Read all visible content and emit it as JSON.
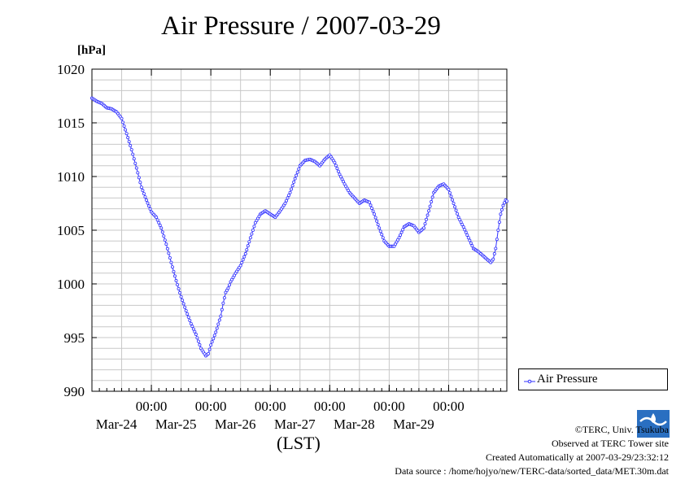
{
  "title": "Air Pressure / 2007-03-29",
  "unit_label": "[hPa]",
  "x_axis_title": "(LST)",
  "legend_label": "Air Pressure",
  "footer": {
    "copyright": "©TERC, Univ. Tsukuba",
    "observed": "Observed at TERC Tower site",
    "created": "Created Automatically at 2007-03-29/23:32:12",
    "source": "Data source : /home/hojyo/new/TERC-data/sorted_data/MET.30m.dat"
  },
  "logo_text": "TERC",
  "colors": {
    "series": "#3333ff",
    "grid": "#c8c8c8",
    "axis": "#000000"
  },
  "chart_data": {
    "type": "line",
    "title": "Air Pressure / 2007-03-29",
    "ylabel": "[hPa]",
    "xlabel": "(LST)",
    "ylim": [
      990,
      1020
    ],
    "y_ticks": [
      990,
      995,
      1000,
      1005,
      1010,
      1015,
      1020
    ],
    "x_start": "2007-03-23 00:00",
    "x_end": "2007-03-29 23:30",
    "x_ticks": [
      {
        "time": "00:00",
        "date": "Mar-24"
      },
      {
        "time": "00:00",
        "date": "Mar-25"
      },
      {
        "time": "00:00",
        "date": "Mar-26"
      },
      {
        "time": "00:00",
        "date": "Mar-27"
      },
      {
        "time": "00:00",
        "date": "Mar-28"
      },
      {
        "time": "00:00",
        "date": "Mar-29"
      }
    ],
    "grid": true,
    "legend_position": "outside-right-bottom",
    "sampling": "30 min",
    "series": [
      {
        "name": "Air Pressure",
        "points": [
          [
            "2007-03-23 00:00",
            1017.3
          ],
          [
            "2007-03-23 02:00",
            1017.0
          ],
          [
            "2007-03-23 04:00",
            1016.8
          ],
          [
            "2007-03-23 06:00",
            1016.4
          ],
          [
            "2007-03-23 08:00",
            1016.3
          ],
          [
            "2007-03-23 10:00",
            1016.0
          ],
          [
            "2007-03-23 12:00",
            1015.4
          ],
          [
            "2007-03-23 14:00",
            1014.0
          ],
          [
            "2007-03-23 16:00",
            1012.5
          ],
          [
            "2007-03-23 18:00",
            1010.8
          ],
          [
            "2007-03-23 20:00",
            1009.0
          ],
          [
            "2007-03-23 22:00",
            1007.8
          ],
          [
            "2007-03-24 00:00",
            1006.7
          ],
          [
            "2007-03-24 02:00",
            1006.2
          ],
          [
            "2007-03-24 04:00",
            1005.2
          ],
          [
            "2007-03-24 06:00",
            1003.7
          ],
          [
            "2007-03-24 08:00",
            1002.0
          ],
          [
            "2007-03-24 10:00",
            1000.3
          ],
          [
            "2007-03-24 12:00",
            998.8
          ],
          [
            "2007-03-24 14:00",
            997.5
          ],
          [
            "2007-03-24 16:00",
            996.3
          ],
          [
            "2007-03-24 18:00",
            995.3
          ],
          [
            "2007-03-24 20:00",
            994.0
          ],
          [
            "2007-03-24 22:00",
            993.3
          ],
          [
            "2007-03-24 23:00",
            993.5
          ],
          [
            "2007-03-25 00:00",
            994.3
          ],
          [
            "2007-03-25 02:00",
            995.5
          ],
          [
            "2007-03-25 04:00",
            997.0
          ],
          [
            "2007-03-25 05:00",
            998.2
          ],
          [
            "2007-03-25 06:00",
            999.2
          ],
          [
            "2007-03-25 07:00",
            999.6
          ],
          [
            "2007-03-25 08:00",
            1000.2
          ],
          [
            "2007-03-25 10:00",
            1001.0
          ],
          [
            "2007-03-25 12:00",
            1001.7
          ],
          [
            "2007-03-25 14:00",
            1002.8
          ],
          [
            "2007-03-25 16:00",
            1004.3
          ],
          [
            "2007-03-25 18:00",
            1005.7
          ],
          [
            "2007-03-25 20:00",
            1006.5
          ],
          [
            "2007-03-25 22:00",
            1006.8
          ],
          [
            "2007-03-26 00:00",
            1006.5
          ],
          [
            "2007-03-26 02:00",
            1006.2
          ],
          [
            "2007-03-26 04:00",
            1006.8
          ],
          [
            "2007-03-26 06:00",
            1007.5
          ],
          [
            "2007-03-26 08:00",
            1008.5
          ],
          [
            "2007-03-26 10:00",
            1009.8
          ],
          [
            "2007-03-26 12:00",
            1011.0
          ],
          [
            "2007-03-26 14:00",
            1011.5
          ],
          [
            "2007-03-26 16:00",
            1011.6
          ],
          [
            "2007-03-26 18:00",
            1011.4
          ],
          [
            "2007-03-26 20:00",
            1011.0
          ],
          [
            "2007-03-26 22:00",
            1011.6
          ],
          [
            "2007-03-27 00:00",
            1012.0
          ],
          [
            "2007-03-27 02:00",
            1011.3
          ],
          [
            "2007-03-27 04:00",
            1010.2
          ],
          [
            "2007-03-27 06:00",
            1009.3
          ],
          [
            "2007-03-27 08:00",
            1008.5
          ],
          [
            "2007-03-27 10:00",
            1008.0
          ],
          [
            "2007-03-27 12:00",
            1007.5
          ],
          [
            "2007-03-27 14:00",
            1007.8
          ],
          [
            "2007-03-27 16:00",
            1007.6
          ],
          [
            "2007-03-27 18:00",
            1006.5
          ],
          [
            "2007-03-27 20:00",
            1005.2
          ],
          [
            "2007-03-27 22:00",
            1004.0
          ],
          [
            "2007-03-28 00:00",
            1003.5
          ],
          [
            "2007-03-28 02:00",
            1003.5
          ],
          [
            "2007-03-28 04:00",
            1004.3
          ],
          [
            "2007-03-28 06:00",
            1005.3
          ],
          [
            "2007-03-28 08:00",
            1005.6
          ],
          [
            "2007-03-28 10:00",
            1005.4
          ],
          [
            "2007-03-28 12:00",
            1004.8
          ],
          [
            "2007-03-28 14:00",
            1005.2
          ],
          [
            "2007-03-28 16:00",
            1006.8
          ],
          [
            "2007-03-28 18:00",
            1008.5
          ],
          [
            "2007-03-28 20:00",
            1009.1
          ],
          [
            "2007-03-28 22:00",
            1009.3
          ],
          [
            "2007-03-29 00:00",
            1008.8
          ],
          [
            "2007-03-29 02:00",
            1007.5
          ],
          [
            "2007-03-29 04:00",
            1006.2
          ],
          [
            "2007-03-29 06:00",
            1005.3
          ],
          [
            "2007-03-29 08:00",
            1004.3
          ],
          [
            "2007-03-29 10:00",
            1003.3
          ],
          [
            "2007-03-29 12:00",
            1003.0
          ],
          [
            "2007-03-29 14:00",
            1002.6
          ],
          [
            "2007-03-29 16:00",
            1002.2
          ],
          [
            "2007-03-29 17:00",
            1002.0
          ],
          [
            "2007-03-29 18:00",
            1002.3
          ],
          [
            "2007-03-29 19:00",
            1003.3
          ],
          [
            "2007-03-29 20:00",
            1005.0
          ],
          [
            "2007-03-29 21:00",
            1006.5
          ],
          [
            "2007-03-29 22:00",
            1007.3
          ],
          [
            "2007-03-29 23:00",
            1007.8
          ],
          [
            "2007-03-29 23:30",
            1007.7
          ]
        ]
      }
    ]
  }
}
